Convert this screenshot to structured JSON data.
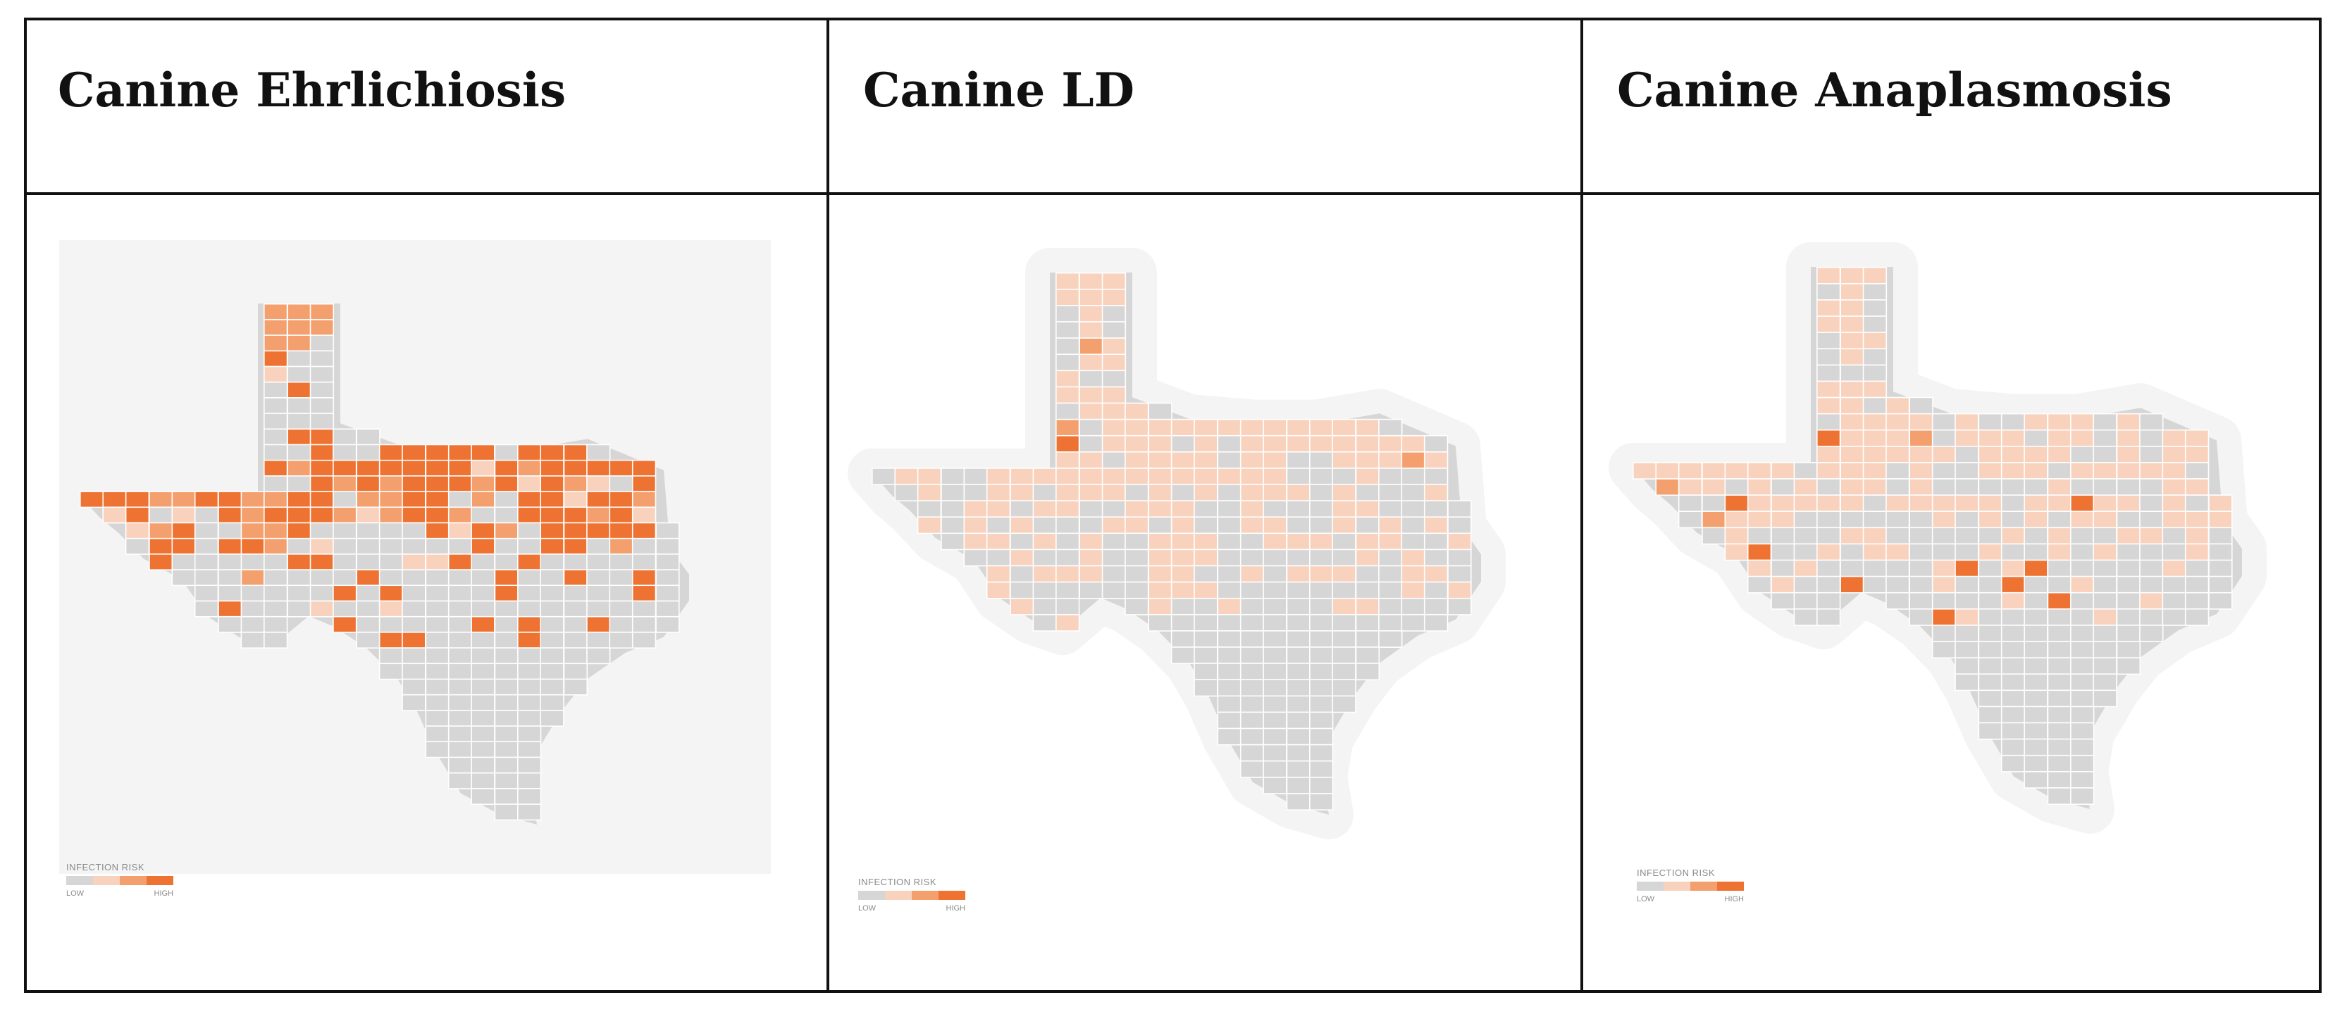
{
  "panels": [
    {
      "title": "Canine Ehrlichiosis",
      "legend": {
        "title": "INFECTION RISK",
        "low": "LOW",
        "high": "HIGH"
      },
      "levels": [
        2,
        2,
        2,
        2,
        2,
        2,
        2,
        2,
        0,
        3,
        0,
        0,
        1,
        0,
        0,
        0,
        3,
        0,
        0,
        0,
        0,
        0,
        0,
        0,
        0,
        3,
        3,
        0,
        0,
        0,
        0,
        3,
        0,
        0,
        3,
        3,
        3,
        3,
        3,
        0,
        3,
        3,
        3,
        0,
        3,
        2,
        3,
        3,
        3,
        3,
        3,
        3,
        3,
        1,
        3,
        2,
        3,
        3,
        3,
        3,
        3,
        0,
        0,
        3,
        2,
        3,
        2,
        3,
        3,
        3,
        2,
        3,
        1,
        3,
        2,
        1,
        0,
        3,
        3,
        3,
        3,
        2,
        2,
        3,
        3,
        2,
        2,
        3,
        3,
        0,
        2,
        2,
        3,
        3,
        0,
        2,
        0,
        3,
        3,
        1,
        3,
        3,
        2,
        1,
        3,
        0,
        1,
        0,
        3,
        2,
        3,
        3,
        3,
        2,
        1,
        2,
        3,
        3,
        2,
        0,
        0,
        3,
        3,
        3,
        2,
        3,
        1,
        1,
        2,
        3,
        0,
        0,
        2,
        2,
        3,
        0,
        0,
        0,
        0,
        0,
        3,
        1,
        3,
        2,
        0,
        3,
        3,
        3,
        3,
        3,
        0,
        0,
        3,
        3,
        0,
        3,
        3,
        2,
        0,
        1,
        0,
        0,
        0,
        0,
        0,
        0,
        3,
        0,
        0,
        3,
        3,
        0,
        2,
        0,
        0,
        3,
        0,
        0,
        0,
        0,
        0,
        3,
        3,
        0,
        0,
        0,
        1,
        1,
        3,
        0,
        0,
        3,
        0,
        0,
        0,
        0,
        0,
        0,
        0,
        0,
        0,
        2,
        0,
        0,
        0,
        0,
        3,
        0,
        0,
        0,
        0,
        0,
        3,
        0,
        0,
        3,
        0,
        0,
        3,
        0,
        0,
        0,
        0,
        0,
        0,
        0,
        3,
        0,
        3,
        0,
        0,
        0,
        0,
        3,
        0,
        0,
        0,
        0,
        0,
        3,
        0,
        0,
        3,
        0,
        0,
        0,
        1,
        0,
        0,
        1,
        0,
        0,
        0,
        0,
        0,
        0,
        0,
        0,
        0,
        0,
        0,
        0,
        0,
        0,
        0,
        3,
        0,
        0,
        0,
        0,
        0,
        3,
        0,
        3,
        0,
        0,
        3,
        0,
        0,
        0,
        0,
        0,
        0,
        3,
        3,
        0,
        0,
        0,
        0,
        3,
        0,
        0
      ]
    },
    {
      "title": "Canine LD",
      "legend": {
        "title": "INFECTION RISK",
        "low": "LOW",
        "high": "HIGH"
      },
      "levels": [
        1,
        1,
        1,
        1,
        1,
        1,
        0,
        1,
        0,
        0,
        1,
        0,
        0,
        2,
        1,
        0,
        1,
        1,
        1,
        0,
        0,
        1,
        1,
        1,
        0,
        1,
        1,
        1,
        0,
        2,
        0,
        1,
        1,
        1,
        1,
        1,
        1,
        1,
        1,
        1,
        1,
        1,
        1,
        0,
        3,
        0,
        1,
        1,
        1,
        0,
        1,
        0,
        1,
        1,
        1,
        1,
        1,
        1,
        1,
        1,
        0,
        1,
        1,
        0,
        1,
        1,
        1,
        1,
        0,
        1,
        1,
        0,
        0,
        1,
        1,
        1,
        2,
        1,
        0,
        1,
        1,
        0,
        0,
        1,
        1,
        1,
        1,
        1,
        1,
        1,
        1,
        1,
        1,
        1,
        1,
        1,
        0,
        0,
        0,
        1,
        0,
        0,
        0,
        0,
        1,
        0,
        0,
        1,
        1,
        0,
        1,
        1,
        1,
        0,
        1,
        0,
        1,
        0,
        1,
        1,
        1,
        0,
        1,
        0,
        0,
        0,
        1,
        0,
        0,
        1,
        1,
        0,
        1,
        1,
        0,
        0,
        1,
        1,
        1,
        0,
        0,
        1,
        0,
        0,
        0,
        1,
        1,
        0,
        0,
        0,
        0,
        1,
        0,
        1,
        0,
        1,
        0,
        0,
        0,
        1,
        1,
        0,
        1,
        0,
        0,
        1,
        1,
        0,
        0,
        1,
        0,
        1,
        0,
        1,
        0,
        0,
        1,
        1,
        0,
        1,
        0,
        1,
        0,
        0,
        1,
        1,
        1,
        0,
        0,
        1,
        1,
        1,
        0,
        1,
        1,
        0,
        0,
        1,
        0,
        0,
        1,
        0,
        0,
        1,
        0,
        0,
        1,
        1,
        1,
        0,
        0,
        0,
        0,
        0,
        0,
        1,
        0,
        1,
        0,
        0,
        1,
        0,
        1,
        1,
        1,
        0,
        0,
        1,
        1,
        0,
        0,
        1,
        0,
        1,
        1,
        1,
        0,
        0,
        1,
        1,
        0,
        1,
        0,
        0,
        0,
        0,
        0,
        0,
        1,
        1,
        1,
        0,
        0,
        0,
        0,
        0,
        0,
        0,
        0,
        1,
        0,
        1,
        1,
        0,
        0,
        0,
        1,
        0,
        0,
        1,
        0,
        0,
        0,
        0,
        1,
        1,
        0,
        0,
        0,
        0,
        0,
        1,
        0,
        0
      ]
    },
    {
      "title": "Canine Anaplasmosis",
      "legend": {
        "title": "INFECTION RISK",
        "low": "LOW",
        "high": "HIGH"
      },
      "levels": [
        1,
        1,
        1,
        0,
        1,
        0,
        1,
        1,
        0,
        1,
        1,
        0,
        0,
        1,
        1,
        0,
        1,
        0,
        0,
        0,
        0,
        1,
        1,
        1,
        1,
        1,
        0,
        1,
        0,
        0,
        1,
        1,
        1,
        1,
        0,
        1,
        0,
        0,
        1,
        1,
        1,
        0,
        1,
        0,
        3,
        1,
        1,
        1,
        2,
        0,
        1,
        1,
        1,
        0,
        1,
        1,
        0,
        1,
        0,
        1,
        1,
        1,
        1,
        1,
        1,
        1,
        1,
        0,
        1,
        1,
        1,
        1,
        0,
        0,
        1,
        0,
        1,
        1,
        1,
        1,
        1,
        1,
        1,
        1,
        1,
        0,
        1,
        1,
        1,
        0,
        1,
        0,
        0,
        1,
        1,
        1,
        0,
        1,
        1,
        1,
        1,
        1,
        0,
        2,
        1,
        1,
        0,
        1,
        0,
        1,
        0,
        1,
        1,
        0,
        1,
        0,
        0,
        0,
        0,
        0,
        1,
        0,
        0,
        0,
        0,
        1,
        1,
        0,
        0,
        3,
        1,
        1,
        1,
        1,
        1,
        0,
        1,
        1,
        1,
        1,
        1,
        0,
        1,
        1,
        3,
        1,
        1,
        0,
        1,
        0,
        1,
        0,
        2,
        1,
        1,
        1,
        0,
        0,
        0,
        0,
        0,
        0,
        1,
        0,
        1,
        0,
        1,
        0,
        1,
        1,
        0,
        0,
        1,
        1,
        1,
        0,
        1,
        0,
        0,
        0,
        0,
        1,
        1,
        0,
        0,
        0,
        0,
        0,
        1,
        0,
        1,
        0,
        0,
        1,
        1,
        0,
        1,
        0,
        1,
        3,
        0,
        0,
        1,
        0,
        1,
        1,
        0,
        0,
        0,
        1,
        0,
        0,
        1,
        0,
        1,
        0,
        0,
        0,
        1,
        0,
        1,
        0,
        1,
        0,
        0,
        0,
        0,
        0,
        1,
        3,
        0,
        1,
        3,
        0,
        0,
        0,
        0,
        0,
        1,
        0,
        0,
        0,
        1,
        0,
        0,
        3,
        0,
        0,
        0,
        1,
        0,
        0,
        3,
        0,
        0,
        1,
        0,
        0,
        0,
        0,
        0,
        0,
        0,
        0,
        0,
        0,
        0,
        0,
        0,
        0,
        1,
        0,
        3,
        0,
        0,
        0,
        1,
        0,
        0,
        0,
        0,
        0,
        0,
        3,
        1,
        0,
        0,
        0,
        0,
        0,
        1,
        0
      ]
    }
  ],
  "colors": {
    "risk_levels": [
      "#d6d6d6",
      "#f9d2bd",
      "#f3a06e",
      "#ee7332"
    ],
    "county_border": "#ffffff",
    "map_background": "#f4f4f4",
    "table_border": "#111111"
  }
}
